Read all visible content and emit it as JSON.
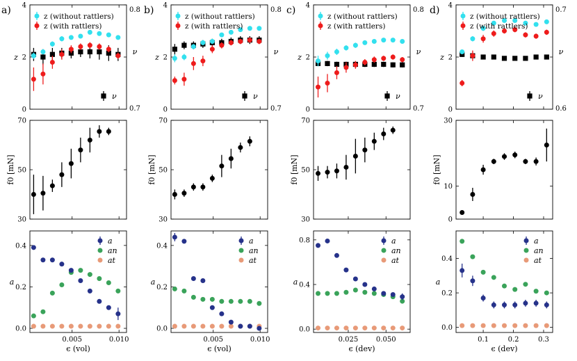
{
  "colors": {
    "z_no": "#33e0ee",
    "z_with": "#ee1c1c",
    "nu": "#000000",
    "f0": "#000000",
    "a": "#26328a",
    "an": "#3aa35a",
    "at": "#e89a78"
  },
  "chart_data": [
    {
      "tag": "a)",
      "type": "scatter",
      "x": [
        0.0009,
        0.0019,
        0.0029,
        0.0039,
        0.0049,
        0.0059,
        0.0069,
        0.0079,
        0.0089,
        0.0099
      ],
      "top": {
        "ylabel_left": "z",
        "ylabel_right": "ν",
        "ylim": [
          0,
          4
        ],
        "yticks": [
          0,
          2,
          4
        ],
        "nu_range": [
          0.7,
          0.8
        ],
        "nu_tick_labels": [
          "0.7",
          "0.8"
        ],
        "legend": [
          "z (without rattlers)",
          "z (with rattlers)"
        ],
        "nu_legend": "ν",
        "z_without": [
          2.05,
          2.2,
          2.5,
          2.7,
          2.75,
          2.8,
          2.95,
          2.9,
          2.85,
          2.75
        ],
        "z_without_err": [
          0.12,
          0.1,
          0.1,
          0.1,
          0.08,
          0.08,
          0.08,
          0.08,
          0.08,
          0.08
        ],
        "z_with": [
          1.15,
          1.35,
          1.8,
          2.1,
          2.3,
          2.4,
          2.45,
          2.4,
          2.3,
          2.05
        ],
        "z_with_err": [
          0.45,
          0.4,
          0.25,
          0.2,
          0.15,
          0.12,
          0.12,
          0.12,
          0.12,
          0.12
        ],
        "nu": [
          2.1,
          2.0,
          2.1,
          2.15,
          2.15,
          2.2,
          2.2,
          2.2,
          2.15,
          2.1
        ],
        "nu_err": [
          0.25,
          0.3,
          0.25,
          0.2,
          0.2,
          0.2,
          0.25,
          0.3,
          0.3,
          0.25
        ]
      },
      "mid": {
        "ylabel": "f0 [mN]",
        "ylim": [
          30,
          70
        ],
        "yticks": [
          30,
          50,
          70
        ],
        "values": [
          40,
          40.5,
          43.5,
          48,
          52.5,
          58,
          62,
          65.5,
          65.5
        ],
        "x": [
          0.0009,
          0.0019,
          0.0029,
          0.0039,
          0.0049,
          0.0059,
          0.0069,
          0.0079,
          0.0089
        ],
        "err": [
          8,
          7,
          2.5,
          5,
          6,
          5,
          5,
          2.5,
          1.5
        ]
      },
      "bot": {
        "ylabel": "a",
        "ylim": [
          -0.02,
          0.47
        ],
        "yticks": [
          0.0,
          0.2,
          0.4
        ],
        "ytick_labels": [
          "0.0",
          "0.2",
          "0.4"
        ],
        "xlabel": "ϵ (vol)",
        "xlim": [
          0.0005,
          0.0108
        ],
        "xticks": [
          0.005,
          0.01
        ],
        "xtick_labels": [
          "0.005",
          "0.010"
        ],
        "legend": [
          "a",
          "an",
          "at"
        ],
        "a": [
          0.39,
          0.33,
          0.33,
          0.31,
          0.28,
          0.23,
          0.18,
          0.13,
          0.1,
          0.07
        ],
        "a_err": [
          0.01,
          0.01,
          0.01,
          0.01,
          0.01,
          0.01,
          0.01,
          0.01,
          0.01,
          0.03
        ],
        "an": [
          0.06,
          0.08,
          0.17,
          0.21,
          0.27,
          0.28,
          0.26,
          0.24,
          0.22,
          0.18
        ],
        "at": [
          0.01,
          0.01,
          0.01,
          0.01,
          0.01,
          0.01,
          0.01,
          0.01,
          0.01,
          0.01
        ]
      }
    },
    {
      "tag": "b)",
      "type": "scatter",
      "x": [
        0.0009,
        0.0019,
        0.0029,
        0.0039,
        0.0049,
        0.0059,
        0.0069,
        0.0079,
        0.0089,
        0.0099
      ],
      "top": {
        "ylabel_left": "z",
        "ylabel_right": "ν",
        "ylim": [
          0,
          4
        ],
        "yticks": [
          0,
          2,
          4
        ],
        "nu_range": [
          0.7,
          0.8
        ],
        "nu_tick_labels": [
          "0.7",
          "0.8"
        ],
        "legend": [
          "z (without rattlers)",
          "z (with rattlers)"
        ],
        "nu_legend": "ν",
        "z_without": [
          1.95,
          2.0,
          2.4,
          2.55,
          2.6,
          2.85,
          2.95,
          3.05,
          3.1,
          3.1
        ],
        "z_without_err": [
          0.15,
          0.12,
          0.1,
          0.1,
          0.1,
          0.08,
          0.08,
          0.08,
          0.08,
          0.08
        ],
        "z_with": [
          1.1,
          1.15,
          1.75,
          1.85,
          2.3,
          2.45,
          2.55,
          2.6,
          2.65,
          2.6
        ],
        "z_with_err": [
          0.15,
          0.25,
          0.25,
          0.2,
          0.15,
          0.12,
          0.1,
          0.1,
          0.1,
          0.1
        ],
        "nu": [
          2.3,
          2.45,
          2.45,
          2.5,
          2.55,
          2.55,
          2.6,
          2.65,
          2.65,
          2.65
        ],
        "nu_err": [
          0.2,
          0.15,
          0.15,
          0.15,
          0.15,
          0.15,
          0.15,
          0.15,
          0.15,
          0.15
        ]
      },
      "mid": {
        "ylabel": "f0 [mN]",
        "ylim": [
          30,
          70
        ],
        "yticks": [
          30,
          50,
          70
        ],
        "values": [
          40,
          40.5,
          43,
          43,
          46.5,
          51.5,
          54.5,
          59,
          61.5
        ],
        "x": [
          0.0009,
          0.0019,
          0.0029,
          0.0039,
          0.0049,
          0.0059,
          0.0069,
          0.0079,
          0.0089
        ],
        "err": [
          2,
          1.5,
          1.5,
          1.5,
          1.5,
          4.5,
          4,
          2,
          2
        ]
      },
      "bot": {
        "ylabel": "a",
        "ylim": [
          -0.02,
          0.47
        ],
        "yticks": [
          0.0,
          0.2,
          0.4
        ],
        "ytick_labels": [
          "0.0",
          "0.2",
          "0.4"
        ],
        "xlabel": "ϵ (vol)",
        "xlim": [
          0.0005,
          0.0108
        ],
        "xticks": [
          0.005,
          0.01
        ],
        "xtick_labels": [
          "0.005",
          "0.010"
        ],
        "legend": [
          "a",
          "an",
          "at"
        ],
        "a": [
          0.44,
          0.42,
          0.24,
          0.23,
          0.1,
          0.07,
          0.03,
          0.01,
          0.01,
          0.0
        ],
        "a_err": [
          0.02,
          0.01,
          0.01,
          0.01,
          0.01,
          0.01,
          0.01,
          0.01,
          0.01,
          0.01
        ],
        "an": [
          0.19,
          0.18,
          0.15,
          0.14,
          0.14,
          0.13,
          0.13,
          0.13,
          0.13,
          0.12
        ],
        "at": [
          0.01,
          0.01,
          0.01,
          0.01,
          0.01,
          0.01,
          0.01,
          0.01,
          0.01,
          0.01
        ]
      }
    },
    {
      "tag": "c)",
      "type": "scatter",
      "x": [
        0.005,
        0.0112,
        0.0174,
        0.0236,
        0.0298,
        0.036,
        0.0422,
        0.0484,
        0.0546,
        0.0608
      ],
      "top": {
        "ylabel_left": "z",
        "ylabel_right": "ν",
        "ylim": [
          0,
          4
        ],
        "yticks": [
          0,
          2,
          4
        ],
        "nu_range": [
          0.7,
          0.8
        ],
        "nu_tick_labels": [
          "0.7",
          "0.8"
        ],
        "legend": [
          "z (without rattlers)",
          "z (with rattlers)"
        ],
        "nu_legend": "ν",
        "z_without": [
          1.85,
          2.05,
          2.2,
          2.35,
          2.45,
          2.55,
          2.6,
          2.65,
          2.65,
          2.6
        ],
        "z_without_err": [
          0.2,
          0.15,
          0.12,
          0.1,
          0.1,
          0.08,
          0.08,
          0.08,
          0.08,
          0.08
        ],
        "z_with": [
          0.85,
          1.0,
          1.4,
          1.6,
          1.7,
          1.8,
          1.9,
          1.95,
          2.0,
          1.9
        ],
        "z_with_err": [
          0.4,
          0.35,
          0.25,
          0.2,
          0.15,
          0.12,
          0.12,
          0.1,
          0.1,
          0.1
        ],
        "nu": [
          1.75,
          1.75,
          1.72,
          1.72,
          1.72,
          1.72,
          1.72,
          1.72,
          1.7,
          1.7
        ],
        "nu_err": [
          0.1,
          0.1,
          0.1,
          0.1,
          0.1,
          0.1,
          0.1,
          0.1,
          0.1,
          0.1
        ]
      },
      "mid": {
        "ylabel": "f0 [mN]",
        "ylim": [
          30,
          70
        ],
        "yticks": [
          30,
          50,
          70
        ],
        "values": [
          48.5,
          49,
          49.5,
          51,
          55.5,
          58,
          61.5,
          64.5,
          66
        ],
        "x": [
          0.005,
          0.0112,
          0.0174,
          0.0236,
          0.0298,
          0.036,
          0.0422,
          0.0484,
          0.0546
        ],
        "err": [
          3,
          2.5,
          3,
          5,
          7,
          5,
          3.5,
          2.5,
          1.5
        ]
      },
      "bot": {
        "ylabel": "a",
        "ylim": [
          -0.03,
          0.88
        ],
        "yticks": [
          0.0,
          0.4,
          0.8
        ],
        "ytick_labels": [
          "0.0",
          "0.4",
          "0.8"
        ],
        "xlabel": "ϵ (dev)",
        "xlim": [
          0.002,
          0.066
        ],
        "xticks": [
          0.025,
          0.05
        ],
        "xtick_labels": [
          "0.025",
          "0.050"
        ],
        "legend": [
          "a",
          "an",
          "at"
        ],
        "a": [
          0.75,
          0.79,
          0.66,
          0.53,
          0.45,
          0.4,
          0.36,
          0.32,
          0.31,
          0.29
        ],
        "a_err": [
          0.02,
          0.01,
          0.01,
          0.01,
          0.01,
          0.01,
          0.01,
          0.01,
          0.01,
          0.03
        ],
        "an": [
          0.32,
          0.32,
          0.32,
          0.33,
          0.35,
          0.33,
          0.32,
          0.31,
          0.29,
          0.25
        ],
        "at": [
          0.01,
          0.01,
          0.01,
          0.01,
          0.01,
          0.01,
          0.01,
          0.01,
          0.01,
          0.01
        ]
      }
    },
    {
      "tag": "d)",
      "type": "scatter",
      "x": [
        0.03,
        0.065,
        0.1,
        0.135,
        0.17,
        0.205,
        0.24,
        0.275,
        0.31
      ],
      "top": {
        "ylabel_left": "z",
        "ylabel_right": "ν",
        "ylim": [
          0,
          4
        ],
        "yticks": [
          0,
          2,
          4
        ],
        "nu_range": [
          0.6,
          0.7
        ],
        "nu_tick_labels": [
          "0.6",
          "0.7"
        ],
        "legend": [
          "z (without rattlers)",
          "z (with rattlers)"
        ],
        "nu_legend": "ν",
        "z_without": [
          2.2,
          2.7,
          3.1,
          3.3,
          3.4,
          3.4,
          3.3,
          3.25,
          3.35
        ],
        "z_without_err": [
          0.08,
          0.1,
          0.1,
          0.08,
          0.08,
          0.08,
          0.08,
          0.08,
          0.08
        ],
        "z_with": [
          1.0,
          2.05,
          2.7,
          2.9,
          3.0,
          3.05,
          2.85,
          2.8,
          2.95
        ],
        "z_with_err": [
          0.12,
          0.2,
          0.15,
          0.12,
          0.1,
          0.1,
          0.1,
          0.1,
          0.1
        ],
        "nu": [
          2.1,
          2.05,
          2.0,
          2.0,
          1.95,
          1.95,
          1.95,
          2.0,
          2.0
        ],
        "nu_err": [
          0.1,
          0.1,
          0.08,
          0.08,
          0.08,
          0.08,
          0.08,
          0.08,
          0.08
        ]
      },
      "mid": {
        "ylabel": "f0 [mN]",
        "ylim": [
          0,
          30
        ],
        "yticks": [
          0,
          10,
          30
        ],
        "ytick_labels": [
          "0",
          "10",
          "30"
        ],
        "values": [
          2,
          7.5,
          15,
          17.5,
          19,
          19.5,
          17.5,
          17.5,
          22.5
        ],
        "x": [
          0.03,
          0.065,
          0.1,
          0.135,
          0.17,
          0.205,
          0.24,
          0.275,
          0.31
        ],
        "err": [
          0.3,
          2,
          1.5,
          0.8,
          1,
          1,
          0.8,
          1.2,
          5
        ]
      },
      "bot": {
        "ylabel": "a",
        "ylim": [
          -0.03,
          0.56
        ],
        "yticks": [
          0.0,
          0.2,
          0.4
        ],
        "ytick_labels": [
          "0.0",
          "0.2",
          "0.4"
        ],
        "xlabel": "ϵ (dev)",
        "xlim": [
          0.01,
          0.33
        ],
        "xticks": [
          0.1,
          0.2,
          0.3
        ],
        "xtick_labels": [
          "0.1",
          "0.2",
          "0.3"
        ],
        "legend": [
          "a",
          "an",
          "at"
        ],
        "a": [
          0.33,
          0.27,
          0.17,
          0.13,
          0.13,
          0.13,
          0.14,
          0.14,
          0.13
        ],
        "a_err": [
          0.04,
          0.03,
          0.02,
          0.02,
          0.02,
          0.02,
          0.02,
          0.02,
          0.02
        ],
        "an": [
          0.5,
          0.41,
          0.32,
          0.29,
          0.24,
          0.22,
          0.25,
          0.21,
          0.2
        ],
        "at": [
          0.01,
          0.01,
          0.01,
          0.01,
          0.01,
          0.01,
          0.01,
          0.01,
          0.01
        ]
      }
    }
  ]
}
